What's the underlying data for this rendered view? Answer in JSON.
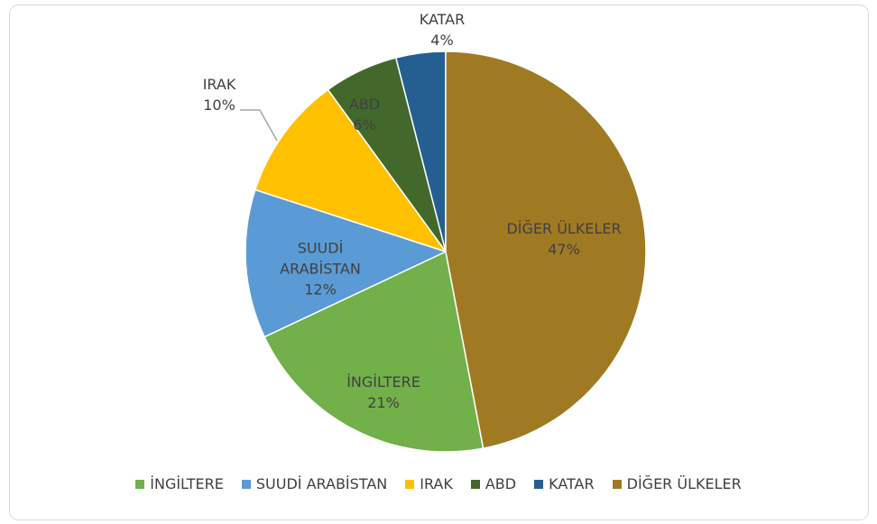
{
  "chart_data": {
    "type": "pie",
    "categories": [
      "İNGİLTERE",
      "SUUDİ ARABİSTAN",
      "IRAK",
      "ABD",
      "KATAR",
      "DİĞER ÜLKELER"
    ],
    "values": [
      21,
      12,
      10,
      6,
      4,
      47
    ],
    "value_labels": [
      "21%",
      "12%",
      "10%",
      "6%",
      "4%",
      "47%"
    ],
    "colors": [
      "#72b04a",
      "#5b9bd5",
      "#ffc000",
      "#43682b",
      "#255e91",
      "#a07a22"
    ],
    "legend": "bottom"
  }
}
